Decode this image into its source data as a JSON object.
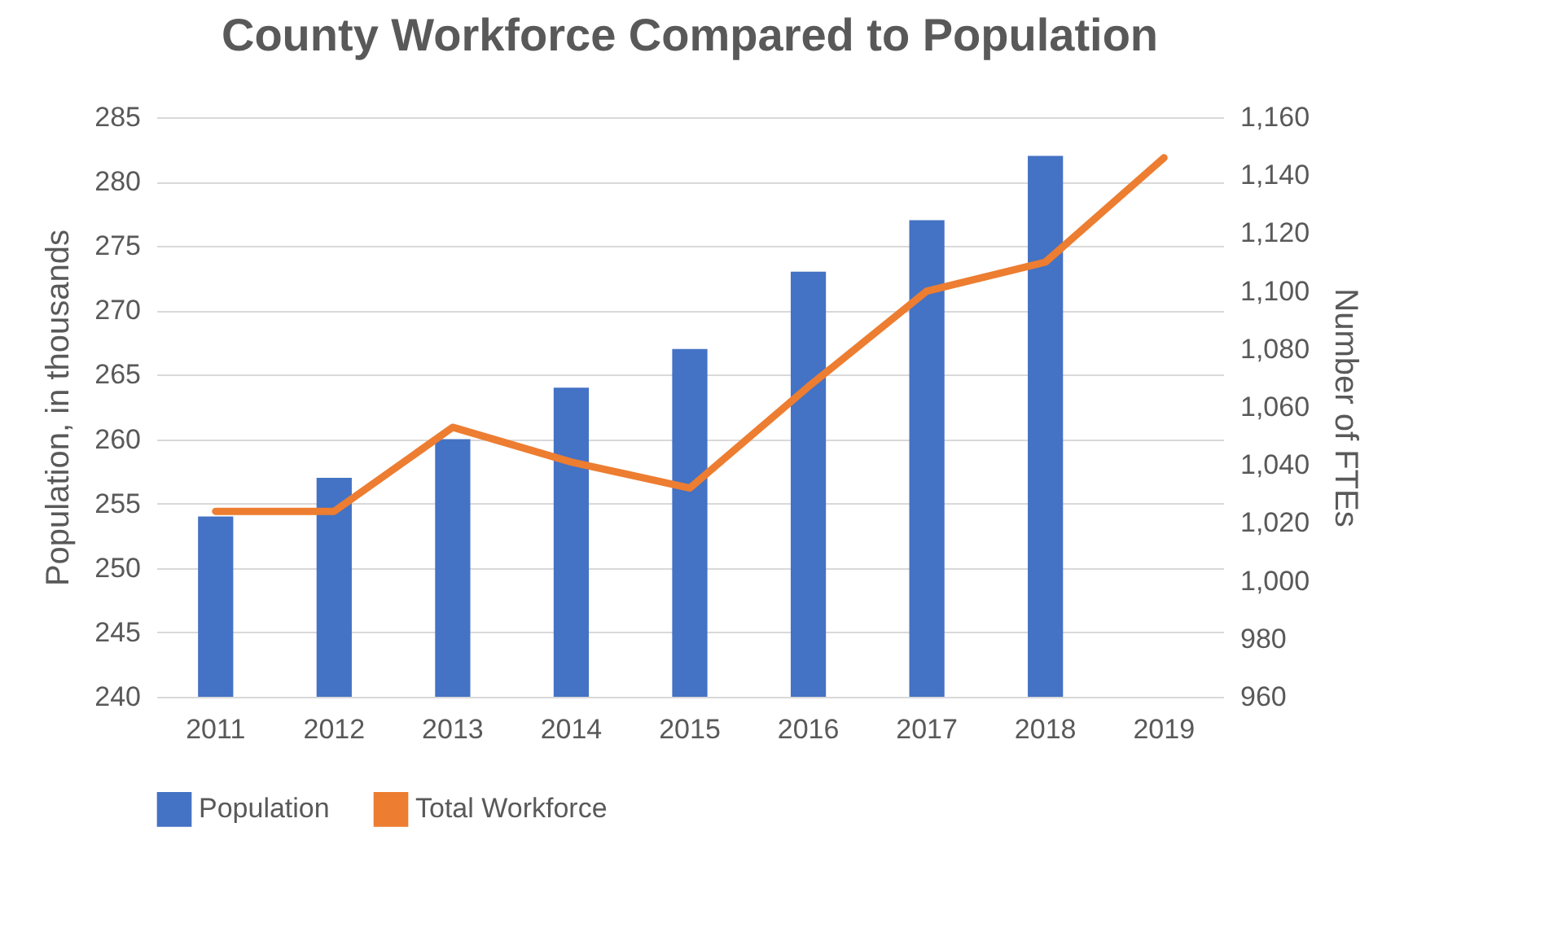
{
  "chart_data": {
    "type": "bar",
    "title": "County Workforce Compared to Population",
    "ylabel": "Population, in thousands",
    "y2label": "Number of FTEs",
    "categories": [
      "2011",
      "2012",
      "2013",
      "2014",
      "2015",
      "2016",
      "2017",
      "2018",
      "2019"
    ],
    "series": [
      {
        "name": "Population",
        "color": "#4472c4",
        "values": [
          254,
          257,
          260,
          264,
          267,
          273,
          277,
          282,
          null
        ]
      },
      {
        "name": "Total Workforce",
        "type": "line",
        "axis": "y2",
        "color": "#ed7d31",
        "values": [
          1024,
          1024,
          1053,
          1041,
          1032,
          1067,
          1100,
          1110,
          1146
        ]
      }
    ],
    "ylim": [
      240,
      285
    ],
    "yticks": [
      240,
      245,
      250,
      255,
      260,
      265,
      270,
      275,
      280,
      285
    ],
    "y2lim": [
      960,
      1160
    ],
    "y2ticks": [
      960,
      980,
      {
        "value": 1000,
        "label": "1,000"
      },
      {
        "value": 1020,
        "label": "1,020"
      },
      {
        "value": 1040,
        "label": "1,040"
      },
      {
        "value": 1060,
        "label": "1,060"
      },
      {
        "value": 1080,
        "label": "1,080"
      },
      {
        "value": 1100,
        "label": "1,100"
      },
      {
        "value": 1120,
        "label": "1,120"
      },
      {
        "value": 1140,
        "label": "1,140"
      },
      {
        "value": 1160,
        "label": "1,160"
      }
    ],
    "grid": "y",
    "legend": "bottom",
    "marker": "none",
    "line_style": "solid"
  }
}
